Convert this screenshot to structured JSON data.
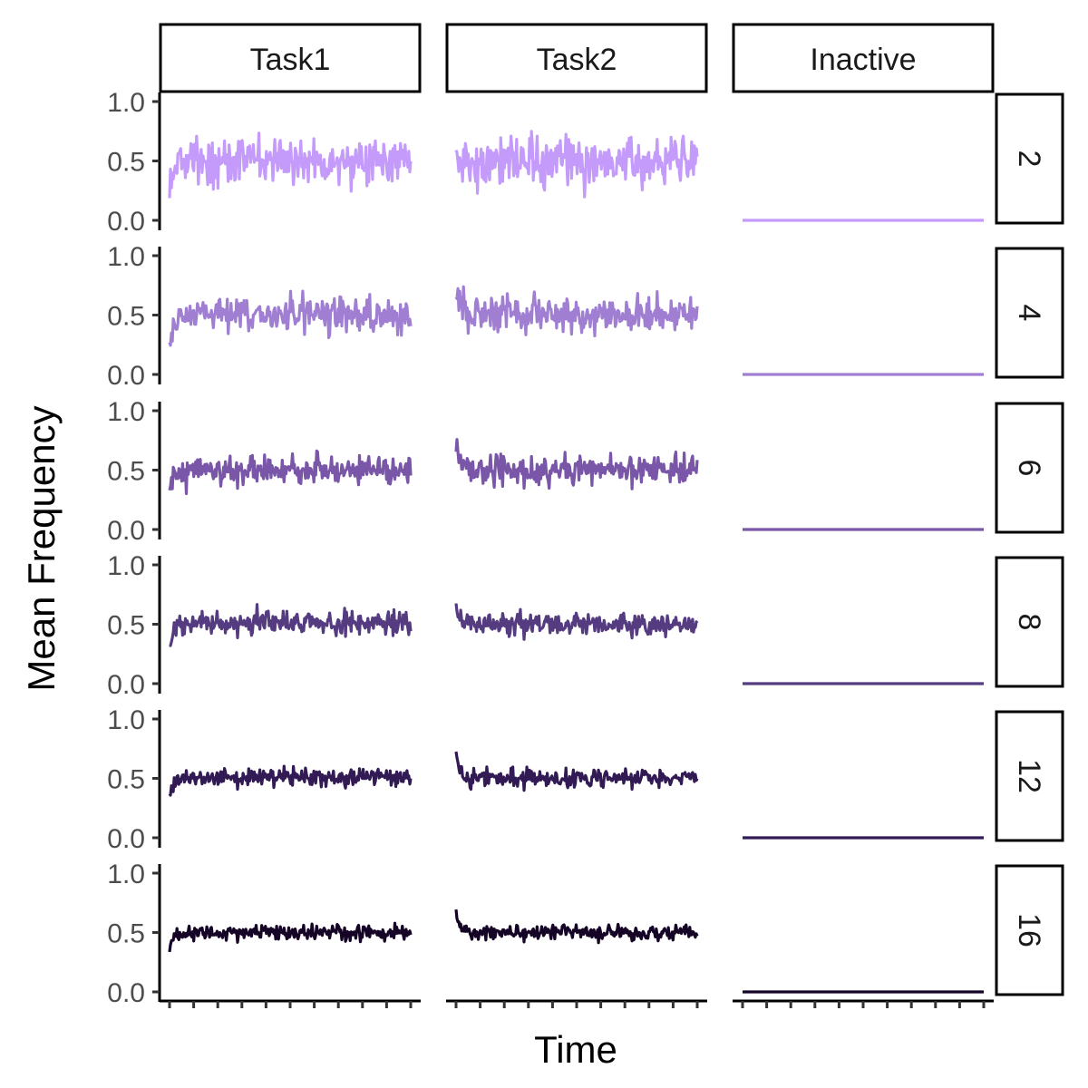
{
  "chart_data": {
    "type": "line",
    "xlabel": "Time",
    "ylabel": "Mean Frequency",
    "ylim": [
      0,
      1
    ],
    "yticks": [
      "0.0",
      "0.5",
      "1.0"
    ],
    "x_tick_count": 11,
    "column_facets": [
      "Task1",
      "Task2",
      "Inactive"
    ],
    "row_facets": [
      "2",
      "4",
      "6",
      "8",
      "12",
      "16"
    ],
    "row_colors": [
      "#C49BFB",
      "#A07FD3",
      "#7A56A8",
      "#553B80",
      "#321A55",
      "#150426"
    ],
    "panels": [
      {
        "group": "2",
        "task": "Task1",
        "mean": 0.5,
        "noise_sd": 0.1,
        "start": 0.35
      },
      {
        "group": "2",
        "task": "Task2",
        "mean": 0.5,
        "noise_sd": 0.1,
        "start": 0.6
      },
      {
        "group": "2",
        "task": "Inactive",
        "mean": 0.0,
        "noise_sd": 0,
        "start": 0.0
      },
      {
        "group": "4",
        "task": "Task1",
        "mean": 0.5,
        "noise_sd": 0.07,
        "start": 0.3
      },
      {
        "group": "4",
        "task": "Task2",
        "mean": 0.5,
        "noise_sd": 0.07,
        "start": 0.72
      },
      {
        "group": "4",
        "task": "Inactive",
        "mean": 0.0,
        "noise_sd": 0,
        "start": 0.0
      },
      {
        "group": "6",
        "task": "Task1",
        "mean": 0.5,
        "noise_sd": 0.06,
        "start": 0.3
      },
      {
        "group": "6",
        "task": "Task2",
        "mean": 0.5,
        "noise_sd": 0.06,
        "start": 0.7
      },
      {
        "group": "6",
        "task": "Inactive",
        "mean": 0.0,
        "noise_sd": 0,
        "start": 0.0
      },
      {
        "group": "8",
        "task": "Task1",
        "mean": 0.51,
        "noise_sd": 0.045,
        "start": 0.3
      },
      {
        "group": "8",
        "task": "Task2",
        "mean": 0.5,
        "noise_sd": 0.045,
        "start": 0.68
      },
      {
        "group": "8",
        "task": "Inactive",
        "mean": 0.0,
        "noise_sd": 0,
        "start": 0.0
      },
      {
        "group": "12",
        "task": "Task1",
        "mean": 0.51,
        "noise_sd": 0.035,
        "start": 0.32
      },
      {
        "group": "12",
        "task": "Task2",
        "mean": 0.5,
        "noise_sd": 0.035,
        "start": 0.68
      },
      {
        "group": "12",
        "task": "Inactive",
        "mean": 0.0,
        "noise_sd": 0,
        "start": 0.0
      },
      {
        "group": "16",
        "task": "Task1",
        "mean": 0.5,
        "noise_sd": 0.03,
        "start": 0.35
      },
      {
        "group": "16",
        "task": "Task2",
        "mean": 0.5,
        "noise_sd": 0.03,
        "start": 0.65
      },
      {
        "group": "16",
        "task": "Inactive",
        "mean": 0.0,
        "noise_sd": 0,
        "start": 0.0
      }
    ]
  }
}
